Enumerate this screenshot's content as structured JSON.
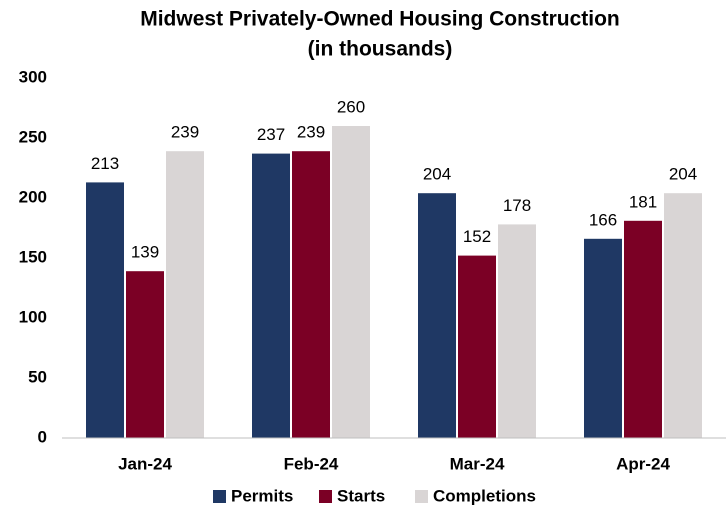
{
  "chart_data": {
    "type": "bar",
    "title": [
      "Midwest Privately-Owned Housing Construction",
      "(in thousands)"
    ],
    "categories": [
      "Jan-24",
      "Feb-24",
      "Mar-24",
      "Apr-24"
    ],
    "series": [
      {
        "name": "Permits",
        "color": "#1f3864",
        "values": [
          213,
          237,
          204,
          166
        ]
      },
      {
        "name": "Starts",
        "color": "#7b0025",
        "values": [
          139,
          239,
          152,
          181
        ]
      },
      {
        "name": "Completions",
        "color": "#d9d5d5",
        "values": [
          239,
          260,
          178,
          204
        ]
      }
    ],
    "ylim": [
      0,
      300
    ],
    "yticks": [
      0,
      50,
      100,
      150,
      200,
      250,
      300
    ],
    "grid": false,
    "legend": "bottom"
  }
}
